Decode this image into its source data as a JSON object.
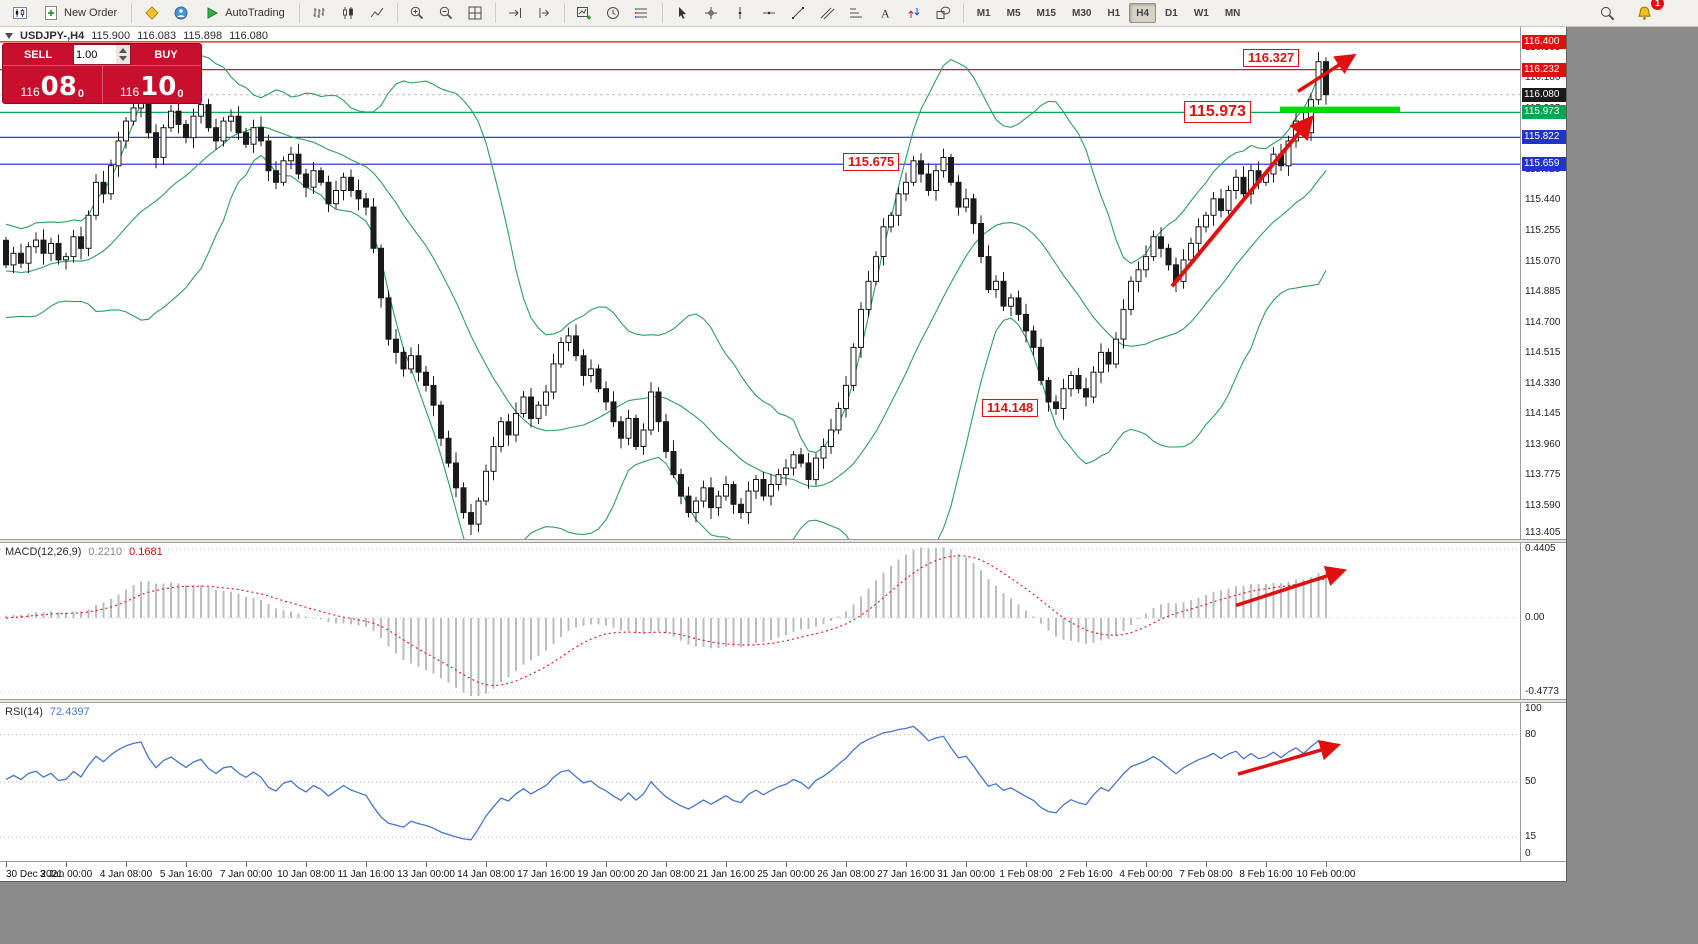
{
  "toolbar": {
    "new_order_label": "New Order",
    "autotrading_label": "AutoTrading",
    "timeframes": [
      "M1",
      "M5",
      "M15",
      "M30",
      "H1",
      "H4",
      "D1",
      "W1",
      "MN"
    ],
    "active_timeframe": "H4",
    "notification_count": "1"
  },
  "symbol_line": {
    "symbol": "USDJPY-,H4",
    "open": "115.900",
    "high": "116.083",
    "low": "115.898",
    "close": "116.080"
  },
  "trade_panel": {
    "sell_label": "SELL",
    "buy_label": "BUY",
    "volume": "1.00",
    "bid": {
      "prefix": "116",
      "pips": "08",
      "sup": "0"
    },
    "ask": {
      "prefix": "116",
      "pips": "10",
      "sup": "0"
    }
  },
  "annotations": {
    "a1": "116.327",
    "a2": "115.973",
    "a3": "115.675",
    "a4": "114.148"
  },
  "macd": {
    "label": "MACD(12,26,9)",
    "value_main": "0.2210",
    "value_signal": "0.1681"
  },
  "rsi": {
    "label": "RSI(14)",
    "value": "72.4397"
  },
  "colors": {
    "bull_body": "#ffffff",
    "bear_body": "#1a1a1a",
    "candle_outline": "#1a1a1a",
    "bollinger": "#2e9e5b",
    "highlight_green": "#00dd00",
    "arrow_red": "#e01010",
    "macd_histogram": "#bcbcbc",
    "macd_signal": "#dd1111",
    "rsi_line": "#4676c8",
    "level_red": "#e01010",
    "level_green": "#00b050",
    "level_blue": "#2020dd",
    "current_price_bg": "#1a1a1a",
    "sell_buy_red": "#c8102e"
  },
  "chart_data": {
    "type": "candlestick",
    "symbol": "USDJPY-",
    "timeframe": "H4",
    "price_axis": [
      "116.365",
      "116.180",
      "115.995",
      "115.810",
      "115.625",
      "115.440",
      "115.255",
      "115.070",
      "114.885",
      "114.700",
      "114.515",
      "114.330",
      "114.145",
      "113.960",
      "113.775",
      "113.590",
      "113.405"
    ],
    "axis_boxes": [
      {
        "value": "116.400",
        "color": "#e01010"
      },
      {
        "value": "116.232",
        "color": "#e01010"
      },
      {
        "value": "116.080",
        "color": "#1a1a1a"
      },
      {
        "value": "115.973",
        "color": "#00a651"
      },
      {
        "value": "115.822",
        "color": "#2233cc"
      },
      {
        "value": "115.659",
        "color": "#2233cc"
      }
    ],
    "levels": [
      {
        "price": 116.4,
        "color": "#e01010"
      },
      {
        "price": 116.232,
        "color": "#e01010"
      },
      {
        "price": 115.973,
        "color": "#00b050"
      },
      {
        "price": 115.822,
        "color": "#2020dd"
      },
      {
        "price": 115.659,
        "color": "#2020dd"
      }
    ],
    "current_price": 116.08,
    "macd_axis": [
      "0.4405",
      "0.00",
      "-0.4773"
    ],
    "rsi_axis": [
      "100",
      "80",
      "50",
      "15",
      "0"
    ],
    "rsi_levels": [
      80,
      50,
      15
    ],
    "tick_step": 8,
    "time_axis": [
      "30 Dec 2021",
      "3 Jan 00:00",
      "4 Jan 08:00",
      "5 Jan 16:00",
      "7 Jan 00:00",
      "10 Jan 08:00",
      "11 Jan 16:00",
      "13 Jan 00:00",
      "14 Jan 08:00",
      "17 Jan 16:00",
      "19 Jan 00:00",
      "20 Jan 08:00",
      "21 Jan 16:00",
      "25 Jan 00:00",
      "26 Jan 08:00",
      "27 Jan 16:00",
      "31 Jan 00:00",
      "1 Feb 08:00",
      "2 Feb 16:00",
      "4 Feb 00:00",
      "7 Feb 08:00",
      "8 Feb 16:00",
      "10 Feb 00:00"
    ],
    "closes": [
      115.05,
      115.12,
      115.06,
      115.16,
      115.2,
      115.12,
      115.18,
      115.08,
      115.1,
      115.22,
      115.15,
      115.35,
      115.55,
      115.48,
      115.65,
      115.8,
      115.92,
      116.0,
      116.05,
      115.85,
      115.7,
      115.88,
      115.98,
      115.9,
      115.82,
      115.95,
      116.02,
      115.88,
      115.8,
      115.92,
      115.95,
      115.85,
      115.78,
      115.88,
      115.8,
      115.62,
      115.55,
      115.68,
      115.72,
      115.6,
      115.52,
      115.62,
      115.55,
      115.42,
      115.5,
      115.58,
      115.5,
      115.45,
      115.4,
      115.15,
      114.85,
      114.6,
      114.52,
      114.42,
      114.5,
      114.4,
      114.32,
      114.2,
      114.0,
      113.85,
      113.7,
      113.55,
      113.48,
      113.62,
      113.8,
      113.95,
      114.1,
      114.02,
      114.15,
      114.25,
      114.12,
      114.2,
      114.28,
      114.45,
      114.58,
      114.62,
      114.5,
      114.38,
      114.42,
      114.3,
      114.22,
      114.1,
      114.0,
      114.12,
      113.95,
      114.05,
      114.28,
      114.1,
      113.92,
      113.78,
      113.65,
      113.55,
      113.62,
      113.7,
      113.58,
      113.65,
      113.72,
      113.6,
      113.55,
      113.68,
      113.75,
      113.65,
      113.72,
      113.78,
      113.82,
      113.9,
      113.85,
      113.75,
      113.88,
      113.95,
      114.05,
      114.18,
      114.32,
      114.55,
      114.78,
      114.95,
      115.1,
      115.28,
      115.35,
      115.48,
      115.55,
      115.68,
      115.6,
      115.5,
      115.62,
      115.7,
      115.55,
      115.4,
      115.45,
      115.3,
      115.1,
      114.9,
      114.95,
      114.8,
      114.85,
      114.75,
      114.65,
      114.55,
      114.35,
      114.22,
      114.18,
      114.3,
      114.38,
      114.3,
      114.25,
      114.4,
      114.52,
      114.45,
      114.6,
      114.78,
      114.95,
      115.02,
      115.1,
      115.22,
      115.15,
      115.05,
      114.95,
      115.08,
      115.18,
      115.28,
      115.35,
      115.45,
      115.38,
      115.5,
      115.58,
      115.48,
      115.62,
      115.55,
      115.6,
      115.72,
      115.65,
      115.8,
      115.92,
      115.85,
      116.05,
      116.28,
      116.08
    ]
  }
}
